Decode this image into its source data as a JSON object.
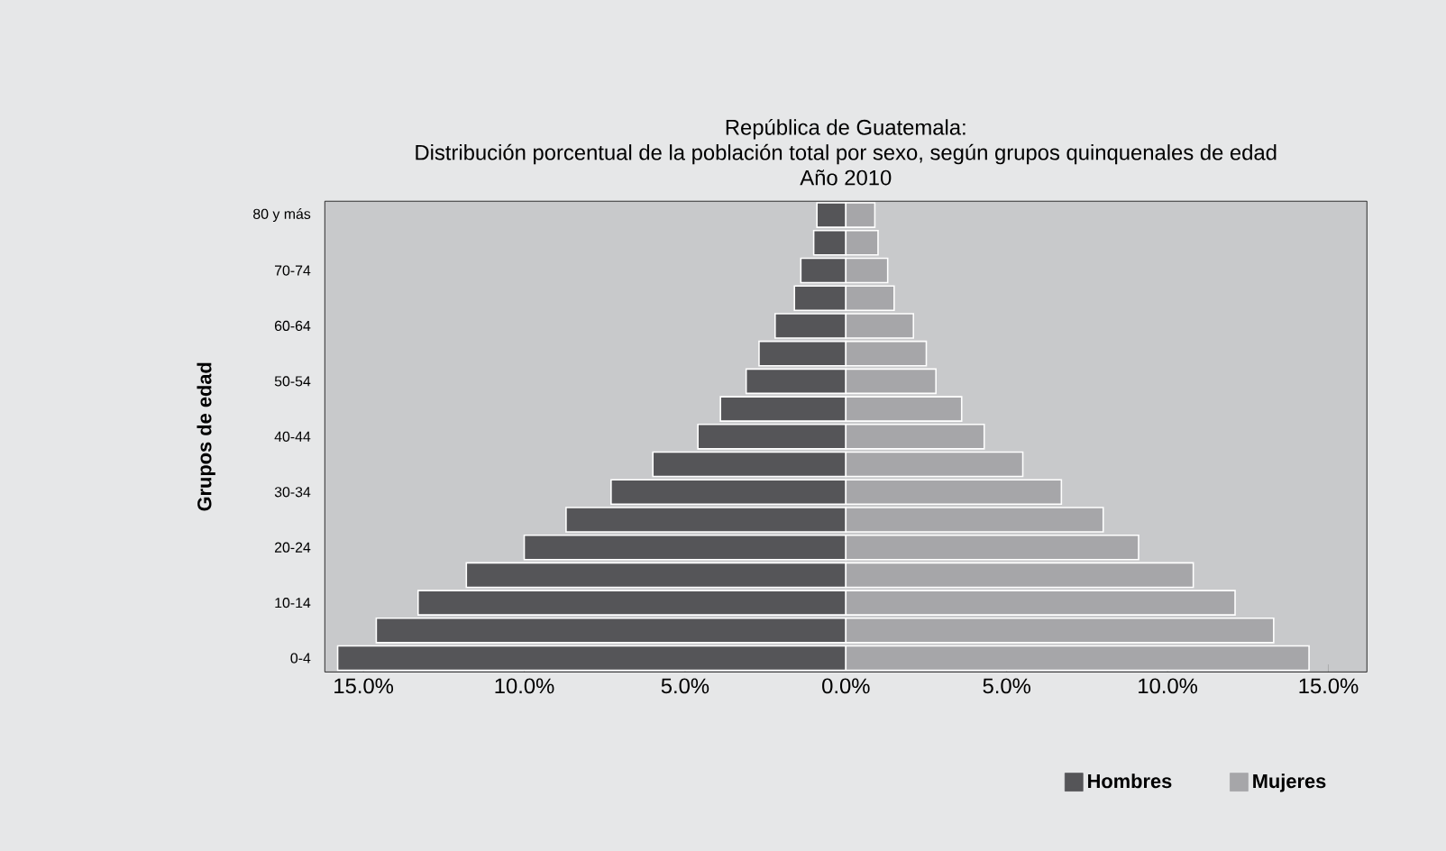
{
  "chart_data": {
    "type": "bar",
    "orientation": "horizontal",
    "stacked": true,
    "title": "República de Guatemala:",
    "subtitle": "Distribución porcentual de la población total por sexo, según grupos quinquenales de edad",
    "annotations": [
      "Año 2010"
    ],
    "ylabel": "Grupos de edad",
    "categories": [
      "80 y más",
      null,
      "70-74",
      null,
      "60-64",
      null,
      "50-54",
      null,
      "40-44",
      null,
      "30-34",
      null,
      "20-24",
      null,
      "10-14",
      null,
      "0-4"
    ],
    "series": [
      {
        "name": "Hombres",
        "color": "#555558",
        "values": [
          -0.9,
          -1.0,
          -1.4,
          -1.6,
          -2.2,
          -2.7,
          -3.1,
          -3.9,
          -4.6,
          -6.0,
          -7.3,
          -8.7,
          -10.0,
          -11.8,
          -13.3,
          -14.6,
          -15.8
        ]
      },
      {
        "name": "Mujeres",
        "color": "#a6a6a9",
        "values": [
          0.9,
          1.0,
          1.3,
          1.5,
          2.1,
          2.5,
          2.8,
          3.6,
          4.3,
          5.5,
          6.7,
          8.0,
          9.1,
          10.8,
          12.1,
          13.3,
          14.4
        ]
      }
    ],
    "xlim": [
      -16.2,
      16.2
    ],
    "xticks": [
      {
        "value": -15,
        "label": "15.0%"
      },
      {
        "value": -10,
        "label": "10.0%"
      },
      {
        "value": -5,
        "label": "5.0%"
      },
      {
        "value": 0,
        "label": "0.0%"
      },
      {
        "value": 5,
        "label": "5.0%"
      },
      {
        "value": 10,
        "label": "10.0%"
      },
      {
        "value": 15,
        "label": "15.0%"
      }
    ],
    "legend": "bottom right"
  }
}
